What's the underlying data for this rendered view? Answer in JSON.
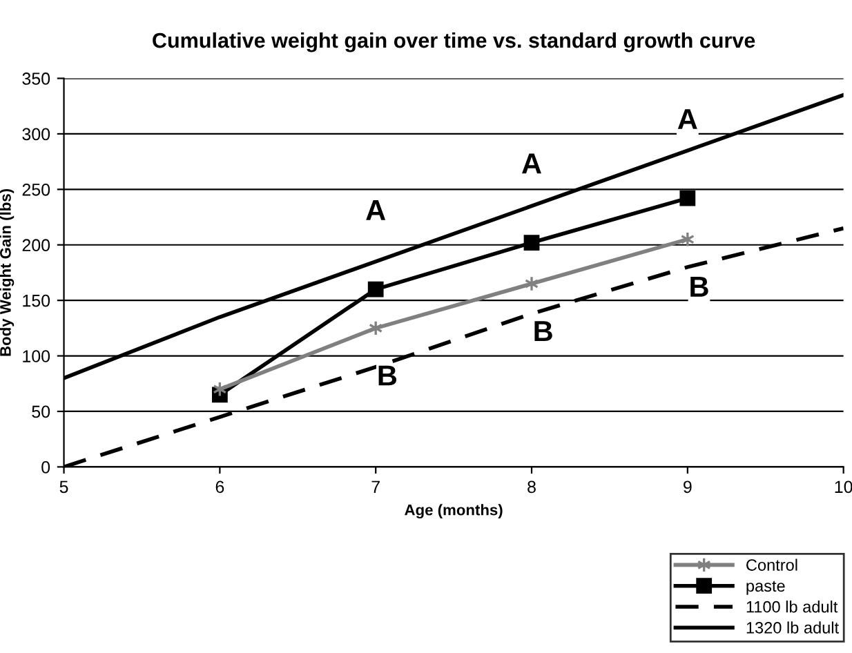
{
  "chart_data": {
    "type": "line",
    "title": "Cumulative weight gain over time vs. standard growth curve",
    "xlabel": "Age (months)",
    "ylabel": "Body Weight Gain (lbs)",
    "xlim": [
      5,
      10
    ],
    "xticks": [
      5,
      6,
      7,
      8,
      9,
      10
    ],
    "ylim": [
      0,
      350
    ],
    "yticks": [
      0,
      50,
      100,
      150,
      200,
      250,
      300,
      350
    ],
    "grid": "y",
    "legend": "bottom right",
    "series": [
      {
        "name": "Control",
        "color": "#808080",
        "marker": "cross",
        "line_style": "solid",
        "x": [
          6,
          7,
          8,
          9
        ],
        "values": [
          70,
          125,
          165,
          205
        ]
      },
      {
        "name": "paste",
        "color": "#000000",
        "marker": "square",
        "line_style": "solid",
        "x": [
          6,
          7,
          8,
          9
        ],
        "values": [
          65,
          160,
          202,
          242
        ]
      },
      {
        "name": "1100 lb adult",
        "color": "#000000",
        "marker": "none",
        "line_style": "dashed",
        "x": [
          5,
          6,
          7,
          8,
          9,
          10
        ],
        "values": [
          0,
          45,
          90,
          138,
          180,
          215
        ]
      },
      {
        "name": "1320 lb adult",
        "color": "#000000",
        "marker": "none",
        "line_style": "solid",
        "x": [
          5,
          6,
          7,
          8,
          9,
          10
        ],
        "values": [
          80,
          135,
          185,
          235,
          285,
          335
        ]
      }
    ],
    "annotations": [
      {
        "text": "A",
        "x": 7,
        "y": 160
      },
      {
        "text": "A",
        "x": 8,
        "y": 202
      },
      {
        "text": "A",
        "x": 9,
        "y": 242
      },
      {
        "text": "B",
        "x": 7,
        "y": 125
      },
      {
        "text": "B",
        "x": 8,
        "y": 165
      },
      {
        "text": "B",
        "x": 9,
        "y": 205
      }
    ]
  }
}
